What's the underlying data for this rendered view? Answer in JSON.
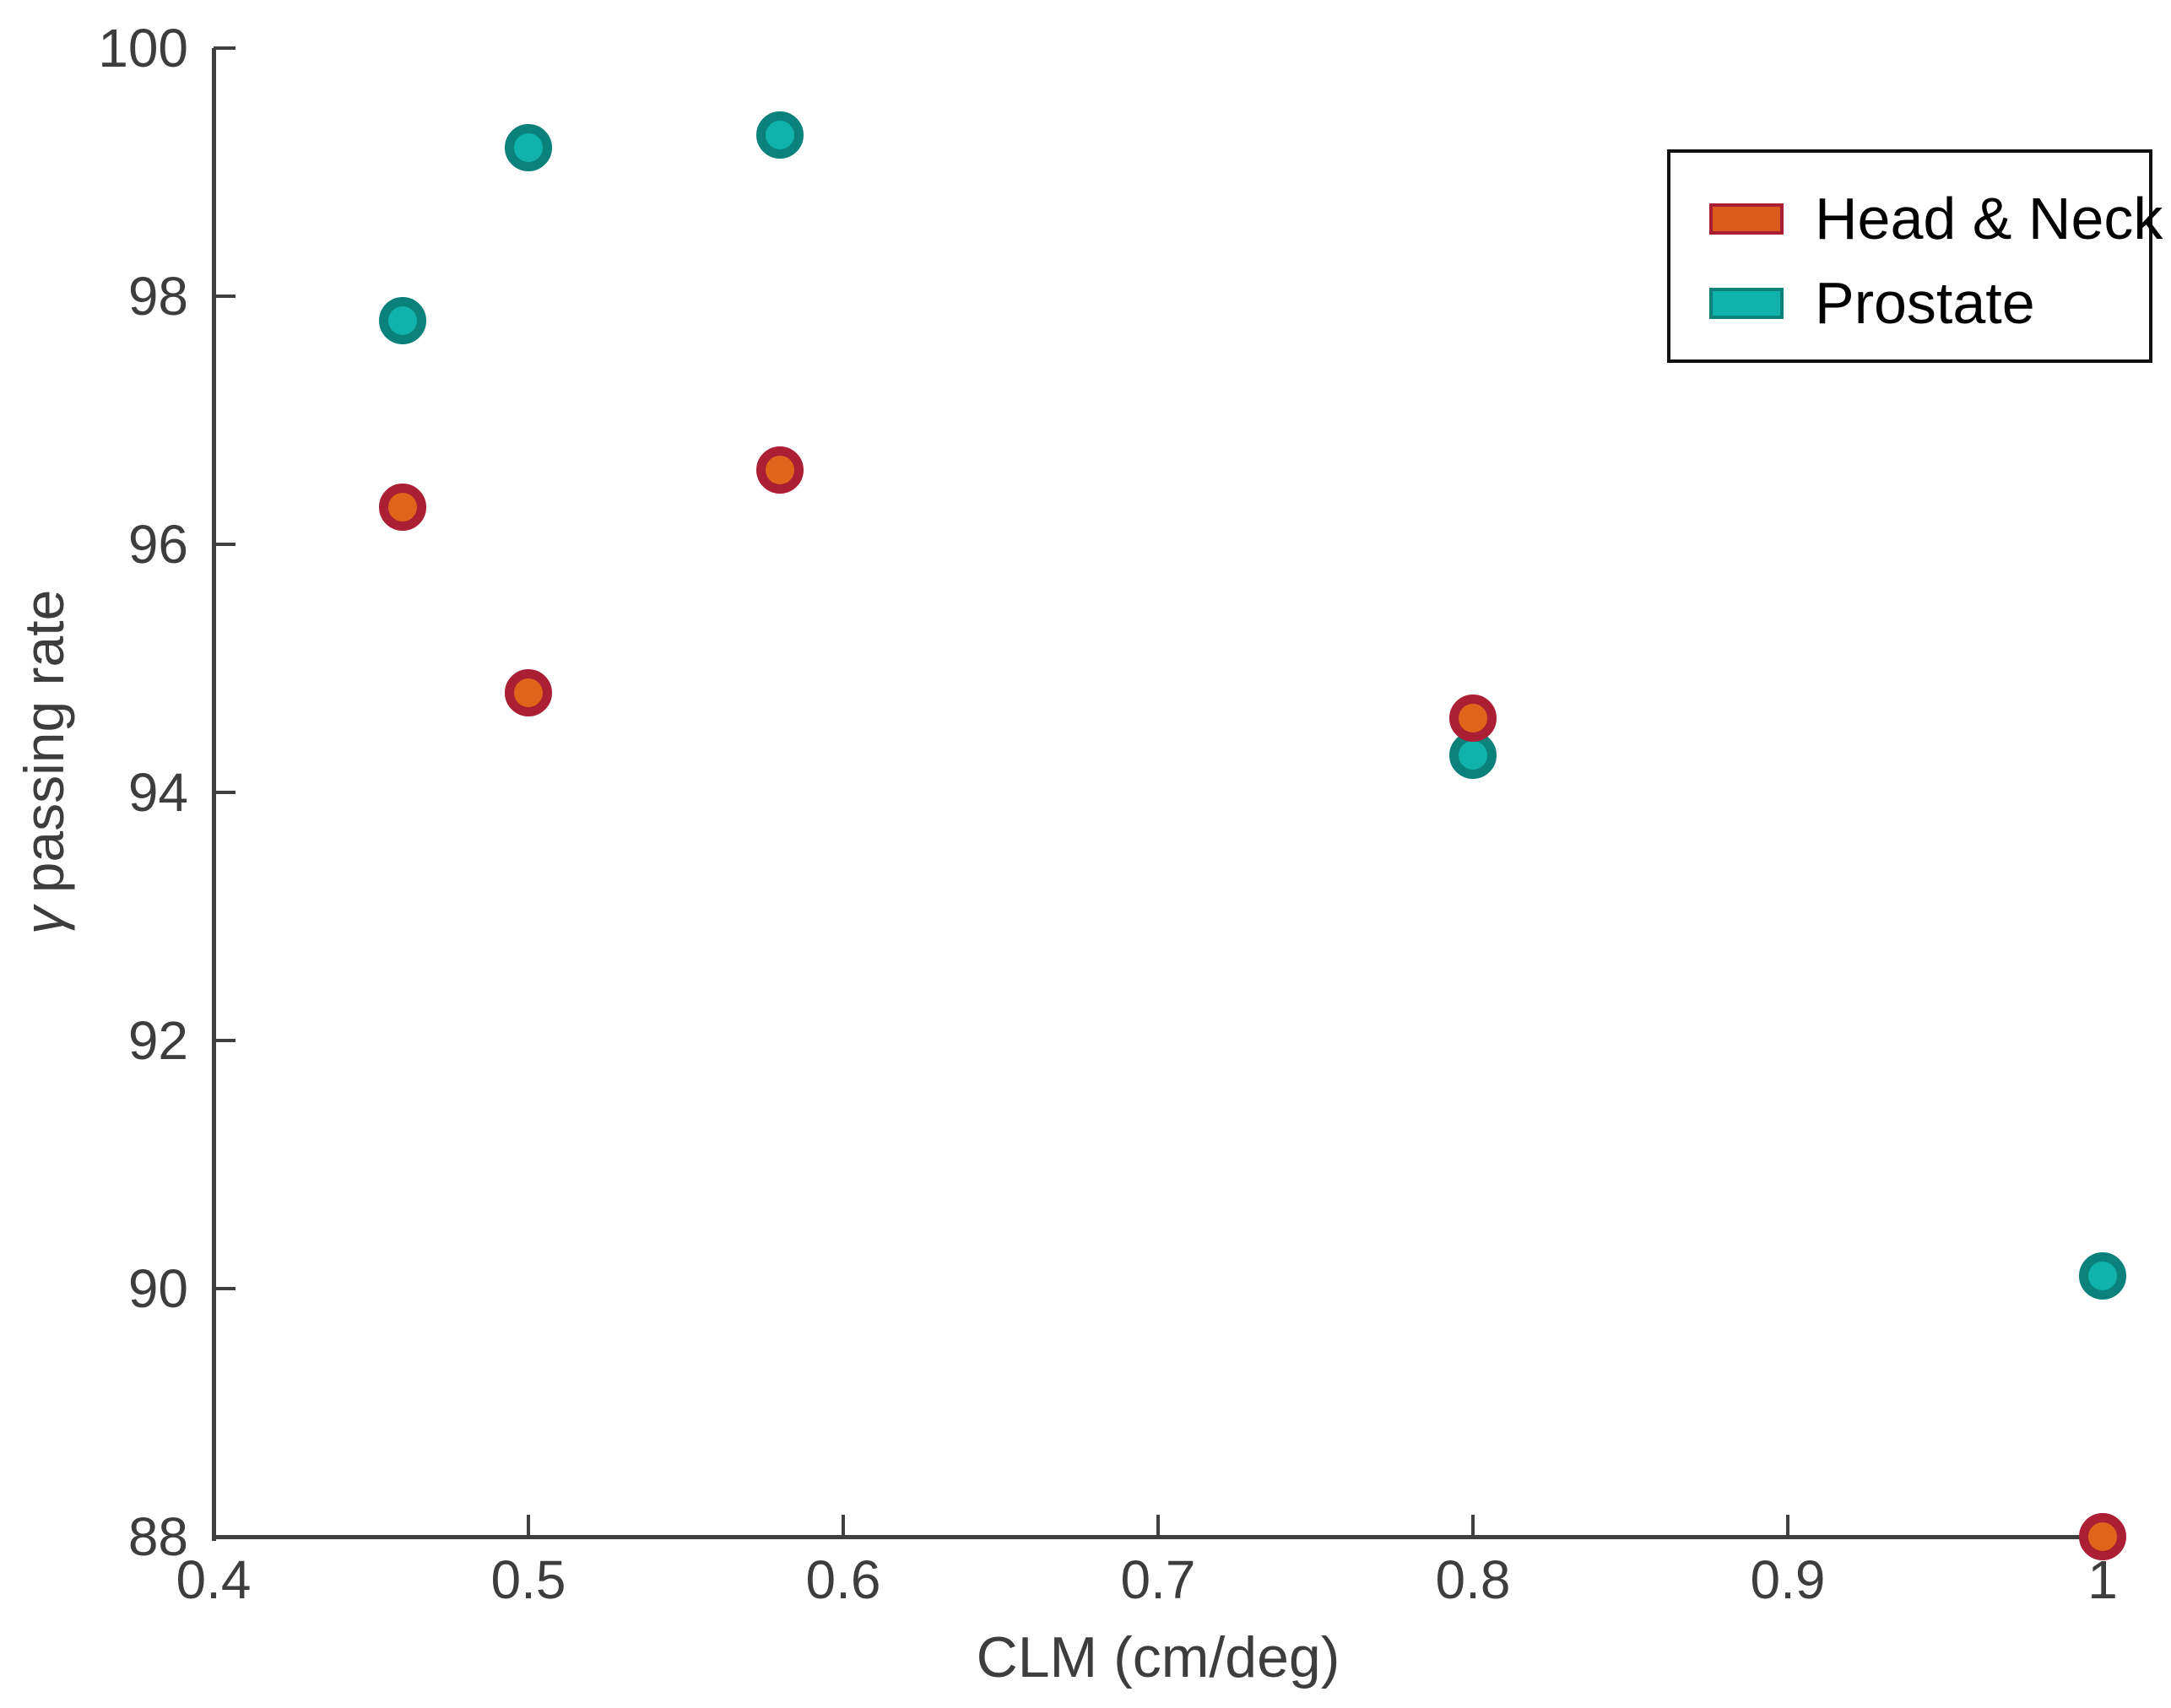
{
  "chart_data": {
    "type": "scatter",
    "title": "",
    "xlabel": "CLM (cm/deg)",
    "ylabel": "γ passing rate",
    "ylabel_gamma": "γ",
    "ylabel_rest": "passing rate",
    "xlim": [
      0.4,
      1.0
    ],
    "ylim": [
      88,
      100
    ],
    "grid": false,
    "background_color": "#ffffff",
    "axis_color": "#3f3f3f",
    "tick_label_color": "#3d3d3d",
    "x_ticks": [
      {
        "value": 0.4,
        "label": "0.4"
      },
      {
        "value": 0.5,
        "label": "0.5"
      },
      {
        "value": 0.6,
        "label": "0.6"
      },
      {
        "value": 0.7,
        "label": "0.7"
      },
      {
        "value": 0.8,
        "label": "0.8"
      },
      {
        "value": 0.9,
        "label": "0.9"
      },
      {
        "value": 1.0,
        "label": "1"
      }
    ],
    "y_ticks": [
      {
        "value": 100,
        "label": "100"
      },
      {
        "value": 98,
        "label": "98"
      },
      {
        "value": 96,
        "label": "96"
      },
      {
        "value": 94,
        "label": "94"
      },
      {
        "value": 92,
        "label": "92"
      },
      {
        "value": 90,
        "label": "90"
      },
      {
        "value": 88,
        "label": "88"
      }
    ],
    "legend": {
      "position": "top-right",
      "border_color": "#111111",
      "items": [
        {
          "label": "Head & Neck",
          "fill": "#DC5B1C",
          "edge": "#A81F33"
        },
        {
          "label": "Prostate",
          "fill": "#10B2AB",
          "edge": "#0A817B"
        }
      ]
    },
    "series": [
      {
        "name": "Head & Neck",
        "marker": "circle",
        "fill": "#E0641A",
        "edge": "#AC1E33",
        "points": [
          [
            0.46,
            96.3
          ],
          [
            0.5,
            94.8
          ],
          [
            0.58,
            96.6
          ],
          [
            0.8,
            94.6
          ],
          [
            1.0,
            88.0
          ]
        ]
      },
      {
        "name": "Prostate",
        "marker": "circle",
        "fill": "#10B2AB",
        "edge": "#0A817B",
        "points": [
          [
            0.46,
            97.8
          ],
          [
            0.5,
            99.2
          ],
          [
            0.58,
            99.3
          ],
          [
            0.8,
            94.3
          ],
          [
            1.0,
            90.1
          ]
        ]
      }
    ]
  }
}
